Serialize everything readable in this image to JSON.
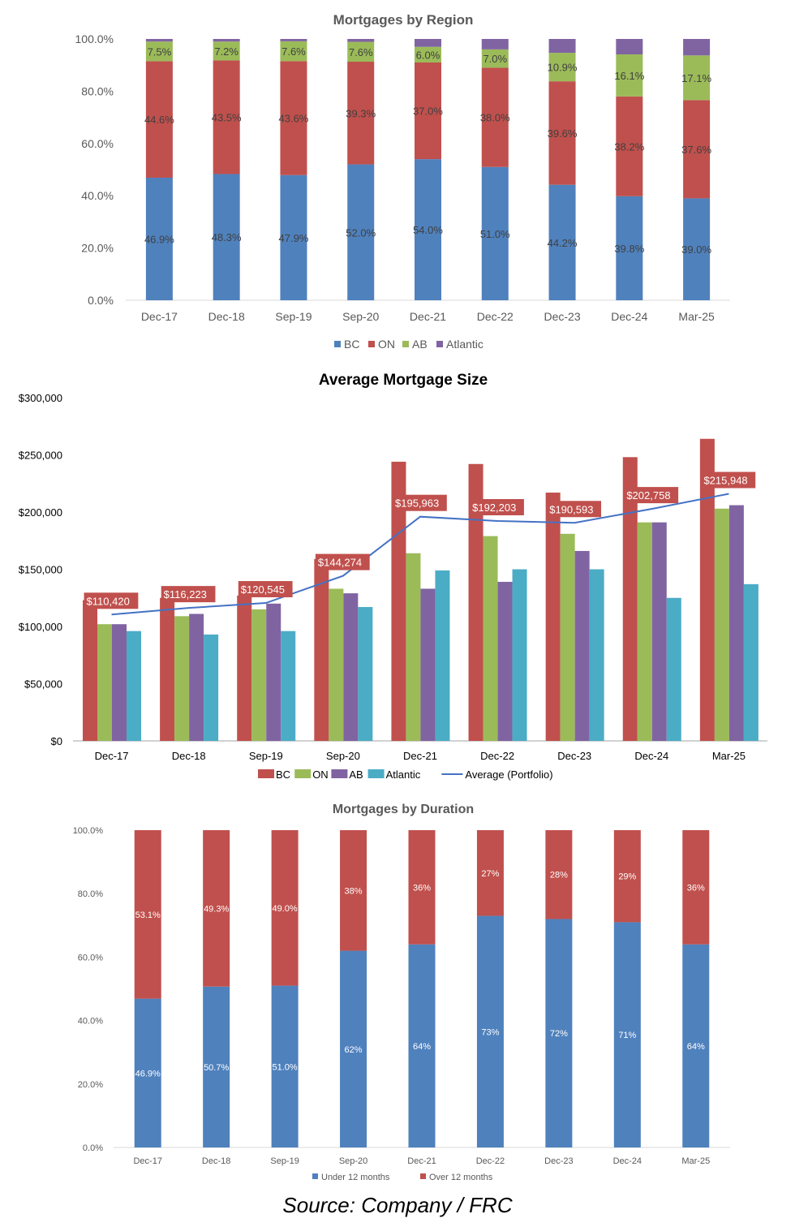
{
  "source_label": "Source: Company / FRC",
  "colors": {
    "BC": "#4f81bd",
    "ON": "#c0504d",
    "AB": "#9bbb59",
    "Atlantic": "#8064a2",
    "Atlantic2": "#4bacc6",
    "avg_line": "#4472c4"
  },
  "chart_data": [
    {
      "type": "bar",
      "stacked": true,
      "title": "Mortgages by Region",
      "categories": [
        "Dec-17",
        "Dec-18",
        "Sep-19",
        "Sep-20",
        "Dec-21",
        "Dec-22",
        "Dec-23",
        "Dec-24",
        "Mar-25"
      ],
      "series": [
        {
          "name": "BC",
          "values": [
            46.9,
            48.3,
            47.9,
            52.0,
            54.0,
            51.0,
            44.2,
            39.8,
            39.0
          ],
          "labels": [
            "46.9%",
            "48.3%",
            "47.9%",
            "52.0%",
            "54.0%",
            "51.0%",
            "44.2%",
            "39.8%",
            "39.0%"
          ]
        },
        {
          "name": "ON",
          "values": [
            44.6,
            43.5,
            43.6,
            39.3,
            37.0,
            38.0,
            39.6,
            38.2,
            37.6
          ],
          "labels": [
            "44.6%",
            "43.5%",
            "43.6%",
            "39.3%",
            "37.0%",
            "38.0%",
            "39.6%",
            "38.2%",
            "37.6%"
          ]
        },
        {
          "name": "AB",
          "values": [
            7.5,
            7.2,
            7.6,
            7.6,
            6.0,
            7.0,
            10.9,
            16.1,
            17.1
          ],
          "labels": [
            "7.5%",
            "7.2%",
            "7.6%",
            "7.6%",
            "6.0%",
            "7.0%",
            "10.9%",
            "16.1%",
            "17.1%"
          ]
        },
        {
          "name": "Atlantic",
          "values": [
            1.0,
            1.0,
            0.9,
            1.1,
            3.0,
            4.0,
            5.3,
            5.9,
            6.3
          ],
          "labels": [
            "",
            "",
            "",
            "",
            "",
            "",
            "",
            "",
            ""
          ]
        }
      ],
      "ylim": [
        0,
        100
      ],
      "yticks": [
        "0.0%",
        "20.0%",
        "40.0%",
        "60.0%",
        "80.0%",
        "100.0%"
      ],
      "legend": "bottom"
    },
    {
      "type": "bar",
      "title": "Average Mortgage Size",
      "categories": [
        "Dec-17",
        "Dec-18",
        "Sep-19",
        "Sep-20",
        "Dec-21",
        "Dec-22",
        "Dec-23",
        "Dec-24",
        "Mar-25"
      ],
      "series": [
        {
          "name": "BC",
          "values": [
            123000,
            125000,
            127000,
            159000,
            244000,
            242000,
            217000,
            248000,
            264000
          ]
        },
        {
          "name": "ON",
          "values": [
            102000,
            109000,
            115000,
            133000,
            164000,
            179000,
            181000,
            191000,
            203000
          ]
        },
        {
          "name": "AB",
          "values": [
            102000,
            111000,
            120000,
            129000,
            133000,
            139000,
            166000,
            191000,
            206000
          ]
        },
        {
          "name": "Atlantic",
          "values": [
            96000,
            93000,
            96000,
            117000,
            149000,
            150000,
            150000,
            125000,
            137000
          ]
        }
      ],
      "line": {
        "name": "Average (Portfolio)",
        "values": [
          110420,
          116223,
          120545,
          144274,
          195963,
          192203,
          190593,
          202758,
          215948
        ],
        "labels": [
          "$110,420",
          "$116,223",
          "$120,545",
          "$144,274",
          "$195,963",
          "$192,203",
          "$190,593",
          "$202,758",
          "$215,948"
        ]
      },
      "ylim": [
        0,
        300000
      ],
      "yticks": [
        "$0",
        "$50,000",
        "$100,000",
        "$150,000",
        "$200,000",
        "$250,000",
        "$300,000"
      ],
      "legend": "bottom"
    },
    {
      "type": "bar",
      "stacked": true,
      "title": "Mortgages by Duration",
      "categories": [
        "Dec-17",
        "Dec-18",
        "Sep-19",
        "Sep-20",
        "Dec-21",
        "Dec-22",
        "Dec-23",
        "Dec-24",
        "Mar-25"
      ],
      "series": [
        {
          "name": "Under 12 months",
          "values": [
            46.9,
            50.7,
            51.0,
            62,
            64,
            73,
            72,
            71,
            64
          ],
          "labels": [
            "46.9%",
            "50.7%",
            "51.0%",
            "62%",
            "64%",
            "73%",
            "72%",
            "71%",
            "64%"
          ]
        },
        {
          "name": "Over 12 months",
          "values": [
            53.1,
            49.3,
            49.0,
            38,
            36,
            27,
            28,
            29,
            36
          ],
          "labels": [
            "53.1%",
            "49.3%",
            "49.0%",
            "38%",
            "36%",
            "27%",
            "28%",
            "29%",
            "36%"
          ]
        }
      ],
      "ylim": [
        0,
        100
      ],
      "yticks": [
        "0.0%",
        "20.0%",
        "40.0%",
        "60.0%",
        "80.0%",
        "100.0%"
      ],
      "legend": "bottom"
    }
  ]
}
